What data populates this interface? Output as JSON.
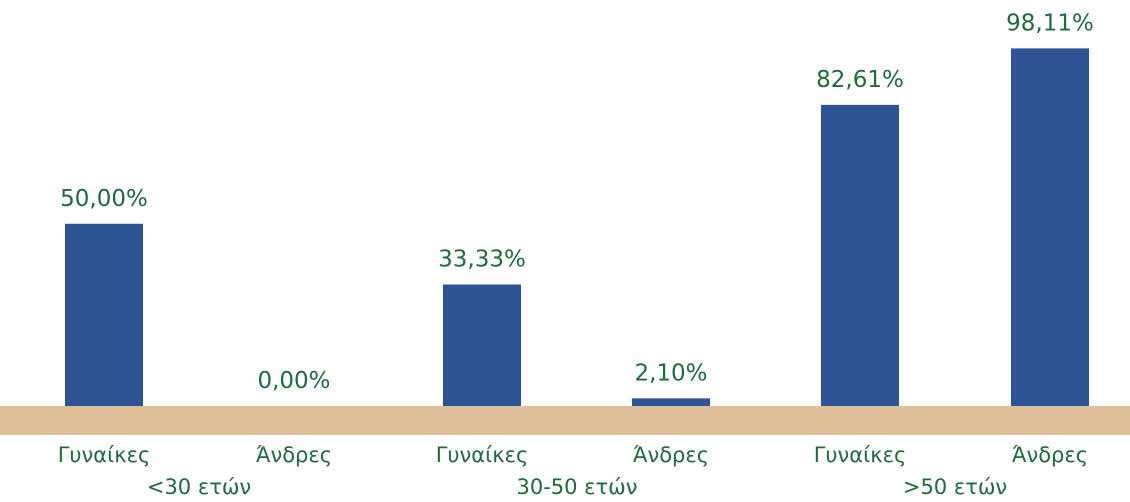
{
  "chart_data": {
    "type": "bar",
    "title": "",
    "xlabel": "",
    "ylabel": "",
    "ylim": [
      0,
      100
    ],
    "grid": false,
    "legend": "none",
    "groups": [
      {
        "label": "<30 ετών",
        "categories": [
          "Γυναίκες",
          "Άνδρες"
        ],
        "values": [
          50.0,
          0.0
        ],
        "value_labels": [
          "50,00%",
          "0,00%"
        ]
      },
      {
        "label": "30-50 ετών",
        "categories": [
          "Γυναίκες",
          "Άνδρες"
        ],
        "values": [
          33.33,
          2.1
        ],
        "value_labels": [
          "33,33%",
          "2,10%"
        ]
      },
      {
        "label": ">50 ετών",
        "categories": [
          "Γυναίκες",
          "Άνδρες"
        ],
        "values": [
          82.61,
          98.11
        ],
        "value_labels": [
          "82,61%",
          "98,11%"
        ]
      }
    ],
    "colors": {
      "bar": "#2e5496",
      "text": "#1f6b3a",
      "baseline_band": "#dfbf9a"
    }
  }
}
